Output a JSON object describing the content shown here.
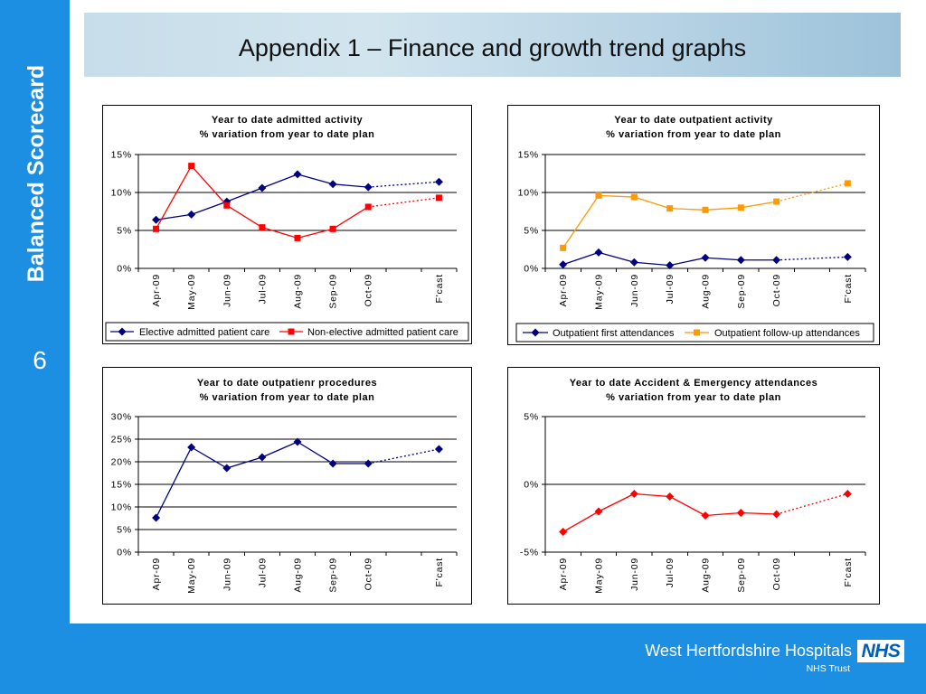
{
  "slide": {
    "sidebar_title": "Balanced Scorecard",
    "page_number": "6",
    "title": "Appendix 1 – Finance and growth trend graphs"
  },
  "footer": {
    "org_name": "West Hertfordshire Hospitals",
    "logo_text": "NHS",
    "org_subtitle": "NHS Trust"
  },
  "colors": {
    "brand_blue": "#1C8FE3",
    "nhs_blue": "#005EB8"
  },
  "chart_data": [
    {
      "type": "line",
      "title": "Year to date admitted activity",
      "subtitle": "% variation from year to date plan",
      "categories": [
        "Apr-09",
        "May-09",
        "Jun-09",
        "Jul-09",
        "Aug-09",
        "Sep-09",
        "Oct-09",
        "",
        "F'cast"
      ],
      "ylim": [
        0,
        15
      ],
      "yticks": [
        0,
        5,
        10,
        15
      ],
      "ytick_labels": [
        "0%",
        "5%",
        "10%",
        "15%"
      ],
      "grid": true,
      "legend": "bottom",
      "series": [
        {
          "name": "Elective admitted patient care",
          "values": [
            6.4,
            7.1,
            8.8,
            10.6,
            12.4,
            11.1,
            10.7,
            null,
            11.4
          ],
          "color": "#000080",
          "marker": "diamond"
        },
        {
          "name": "Non-elective admitted patient care",
          "values": [
            5.2,
            13.5,
            8.3,
            5.4,
            4.0,
            5.2,
            8.1,
            null,
            9.3
          ],
          "color": "#FF0000",
          "marker": "square"
        }
      ]
    },
    {
      "type": "line",
      "title": "Year to date outpatient activity",
      "subtitle": "% variation from year to date plan",
      "categories": [
        "Apr-09",
        "May-09",
        "Jun-09",
        "Jul-09",
        "Aug-09",
        "Sep-09",
        "Oct-09",
        "",
        "F'cast"
      ],
      "ylim": [
        0,
        15
      ],
      "yticks": [
        0,
        5,
        10,
        15
      ],
      "ytick_labels": [
        "0%",
        "5%",
        "10%",
        "15%"
      ],
      "grid": true,
      "legend": "bottom",
      "series": [
        {
          "name": "Outpatient first attendances",
          "values": [
            0.5,
            2.1,
            0.8,
            0.4,
            1.4,
            1.1,
            1.1,
            null,
            1.5
          ],
          "color": "#000080",
          "marker": "diamond"
        },
        {
          "name": "Outpatient follow-up attendances",
          "values": [
            2.7,
            9.6,
            9.4,
            7.9,
            7.7,
            8.0,
            8.8,
            null,
            11.2
          ],
          "color": "#FF9900",
          "marker": "square"
        }
      ]
    },
    {
      "type": "line",
      "title": "Year to date outpatienr procedures",
      "subtitle": "% variation from year to date plan",
      "categories": [
        "Apr-09",
        "May-09",
        "Jun-09",
        "Jul-09",
        "Aug-09",
        "Sep-09",
        "Oct-09",
        "",
        "F'cast"
      ],
      "ylim": [
        0,
        30
      ],
      "yticks": [
        0,
        5,
        10,
        15,
        20,
        25,
        30
      ],
      "ytick_labels": [
        "0%",
        "5%",
        "10%",
        "15%",
        "20%",
        "25%",
        "30%"
      ],
      "grid": true,
      "legend": "none",
      "series": [
        {
          "values": [
            7.6,
            23.2,
            18.6,
            21.0,
            24.4,
            19.6,
            19.6,
            null,
            22.8
          ],
          "color": "#000080",
          "marker": "diamond"
        }
      ]
    },
    {
      "type": "line",
      "title": "Year to date Accident & Emergency attendances",
      "subtitle": "% variation from year to date plan",
      "categories": [
        "Apr-09",
        "May-09",
        "Jun-09",
        "Jul-09",
        "Aug-09",
        "Sep-09",
        "Oct-09",
        "",
        "F'cast"
      ],
      "ylim": [
        -5,
        5
      ],
      "yticks": [
        -5,
        0,
        5
      ],
      "ytick_labels": [
        "-5%",
        "0%",
        "5%"
      ],
      "grid": true,
      "legend": "none",
      "series": [
        {
          "values": [
            -3.5,
            -2.0,
            -0.7,
            -0.9,
            -2.3,
            -2.1,
            -2.2,
            null,
            -0.7
          ],
          "color": "#FF0000",
          "marker": "diamond"
        }
      ]
    }
  ]
}
